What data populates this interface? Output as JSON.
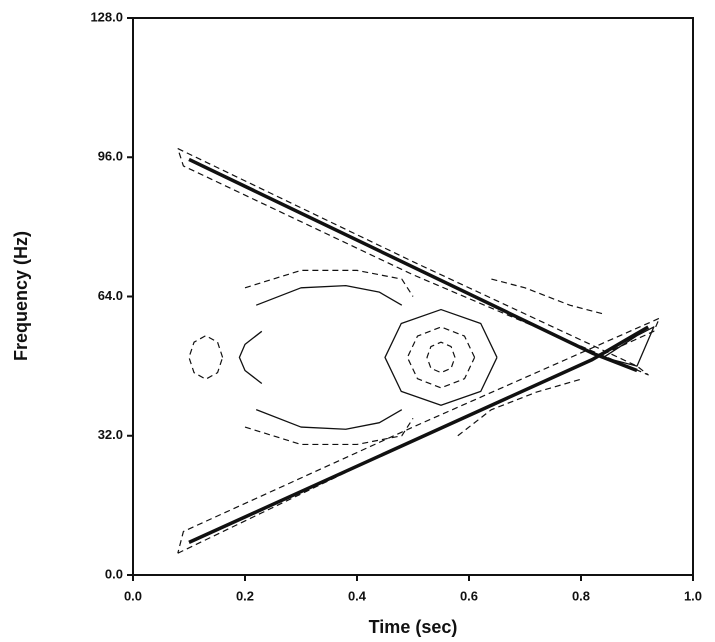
{
  "chart_data": {
    "type": "contour",
    "xlabel": "Time (sec)",
    "ylabel": "Frequency (Hz)",
    "xlim": [
      0,
      1
    ],
    "ylim": [
      0,
      128
    ],
    "xticks": [
      {
        "value": 0,
        "label": "0.0"
      },
      {
        "value": 0.2,
        "label": "0.2"
      },
      {
        "value": 0.4,
        "label": "0.4"
      },
      {
        "value": 0.6,
        "label": "0.6"
      },
      {
        "value": 0.8,
        "label": "0.8"
      },
      {
        "value": 1,
        "label": "1.0"
      }
    ],
    "yticks": [
      {
        "value": 0,
        "label": "0.0"
      },
      {
        "value": 32,
        "label": "32.0"
      },
      {
        "value": 64,
        "label": "64.0"
      },
      {
        "value": 96,
        "label": "96.0"
      },
      {
        "value": 128,
        "label": "128.0"
      }
    ],
    "color": "#111111",
    "contours": [
      {
        "style": "thick",
        "x": [
          0.1,
          0.82,
          0.9
        ],
        "y": [
          95.5,
          51,
          47
        ]
      },
      {
        "style": "thick",
        "x": [
          0.1,
          0.82,
          0.92
        ],
        "y": [
          7.5,
          49.5,
          57
        ]
      },
      {
        "style": "dashed",
        "x": [
          0.08,
          0.5,
          0.9,
          0.92,
          0.5,
          0.09,
          0.08
        ],
        "y": [
          98,
          72,
          48,
          46,
          69,
          94,
          98
        ]
      },
      {
        "style": "dashed",
        "x": [
          0.08,
          0.5,
          0.93,
          0.94,
          0.5,
          0.09,
          0.08
        ],
        "y": [
          5,
          31,
          56,
          59,
          34,
          10,
          5
        ]
      },
      {
        "style": "solid",
        "x": [
          0.65,
          0.621,
          0.55,
          0.479,
          0.45,
          0.479,
          0.55,
          0.621,
          0.65
        ],
        "y": [
          50,
          57.8,
          61,
          57.8,
          50,
          42.2,
          39,
          42.2,
          50
        ]
      },
      {
        "style": "dashed",
        "x": [
          0.61,
          0.592,
          0.55,
          0.508,
          0.49,
          0.508,
          0.55,
          0.592,
          0.61
        ],
        "y": [
          50,
          54.9,
          57,
          54.9,
          50,
          45.1,
          43,
          45.1,
          50
        ]
      },
      {
        "style": "dashed",
        "x": [
          0.575,
          0.568,
          0.55,
          0.532,
          0.525,
          0.532,
          0.55,
          0.568,
          0.575
        ],
        "y": [
          50,
          52.5,
          53.5,
          52.5,
          50,
          47.5,
          46.5,
          47.5,
          50
        ]
      },
      {
        "style": "solid",
        "x": [
          0.23,
          0.2,
          0.19,
          0.2,
          0.23
        ],
        "y": [
          56,
          53,
          50,
          47,
          44
        ]
      },
      {
        "style": "dashed",
        "x": [
          0.16,
          0.151,
          0.13,
          0.109,
          0.1,
          0.109,
          0.13,
          0.151,
          0.16
        ],
        "y": [
          50,
          53.5,
          55,
          53.5,
          50,
          46.5,
          45,
          46.5,
          50
        ]
      },
      {
        "style": "solid",
        "x": [
          0.22,
          0.3,
          0.38,
          0.44,
          0.48
        ],
        "y": [
          62,
          66,
          66.5,
          65,
          62
        ]
      },
      {
        "style": "dashed",
        "x": [
          0.2,
          0.3,
          0.4,
          0.48,
          0.5
        ],
        "y": [
          66,
          70,
          70,
          68,
          64
        ]
      },
      {
        "style": "solid",
        "x": [
          0.22,
          0.3,
          0.38,
          0.44,
          0.48
        ],
        "y": [
          38,
          34,
          33.5,
          35,
          38
        ]
      },
      {
        "style": "dashed",
        "x": [
          0.2,
          0.3,
          0.4,
          0.48,
          0.5
        ],
        "y": [
          34,
          30,
          30,
          32,
          36
        ]
      },
      {
        "style": "dashed",
        "x": [
          0.64,
          0.7,
          0.78,
          0.84
        ],
        "y": [
          68,
          66,
          62,
          60
        ]
      },
      {
        "style": "dashed",
        "x": [
          0.58,
          0.64,
          0.72,
          0.8
        ],
        "y": [
          32,
          38,
          42,
          45
        ]
      },
      {
        "style": "solid",
        "x": [
          0.84,
          0.9,
          0.93,
          0.9,
          0.84
        ],
        "y": [
          50,
          55,
          57,
          48,
          50
        ]
      }
    ]
  }
}
